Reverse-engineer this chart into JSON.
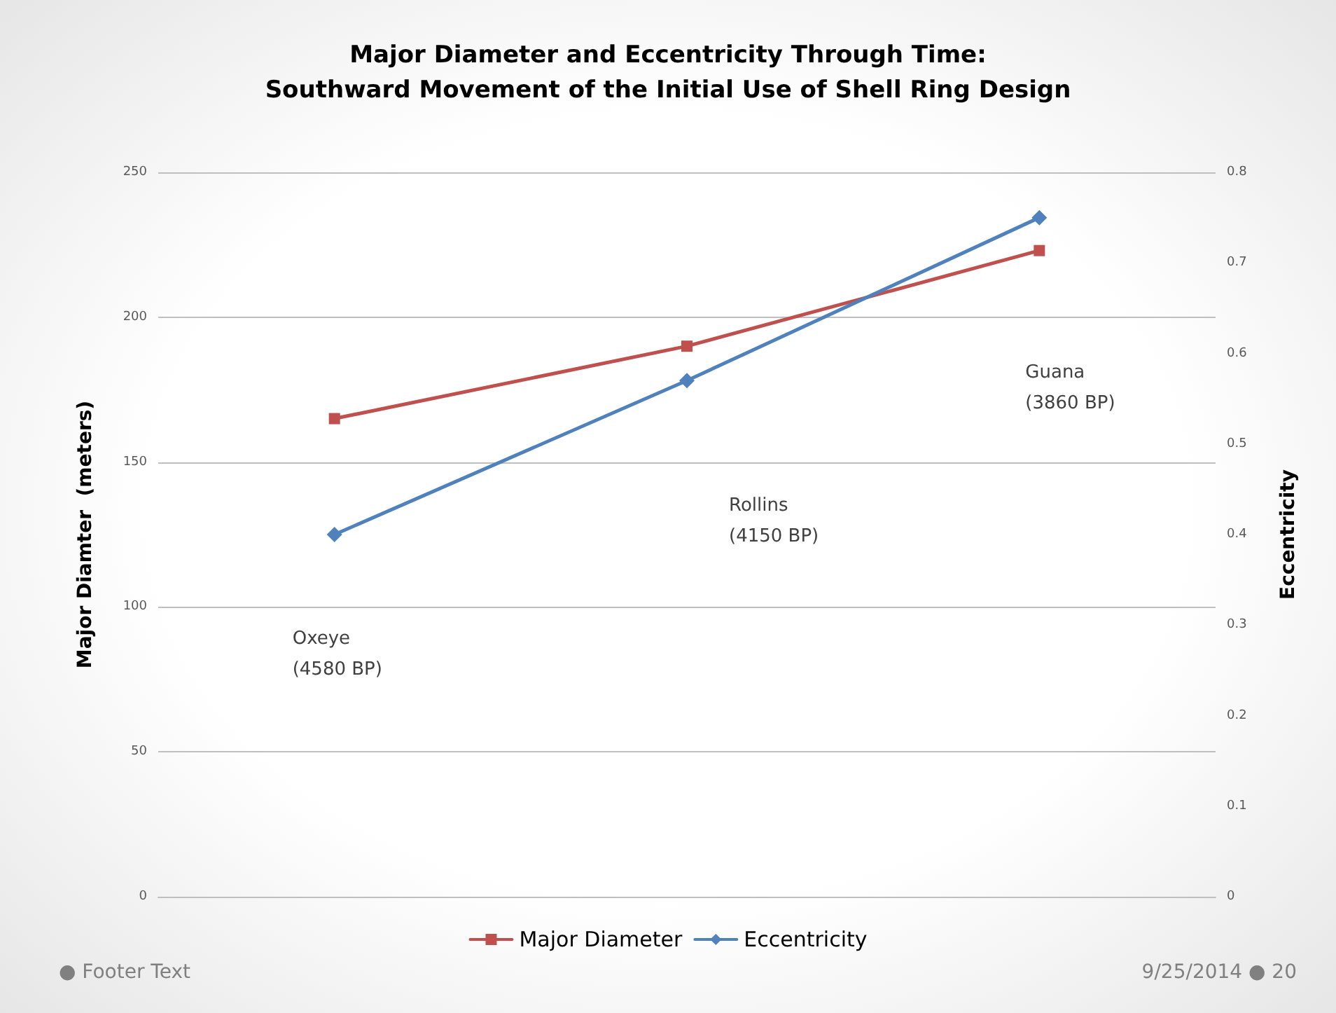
{
  "chart_data": {
    "type": "line",
    "title": "Major Diameter and Eccentricity Through Time:\nSouthward Movement of the Initial Use of Shell Ring Design",
    "ylabel": "Major Diamter  (meters)",
    "y2label": "Eccentricity",
    "categories": [
      null,
      null,
      null
    ],
    "series": [
      {
        "name": "Major Diameter",
        "color": "#c0504d",
        "marker": "square",
        "values": [
          165,
          190,
          223
        ]
      },
      {
        "name": "Eccentricity",
        "color": "#4f81bd",
        "marker": "diamond",
        "axis": "y2",
        "values": [
          0.4,
          0.57,
          0.75
        ]
      }
    ],
    "ylim": [
      0,
      250
    ],
    "yticks": [
      0,
      50,
      100,
      150,
      200,
      250
    ],
    "y2lim": [
      0,
      0.8
    ],
    "y2ticks": [
      0,
      0.1,
      0.2,
      0.3,
      0.4,
      0.5,
      0.6,
      0.7,
      0.8
    ],
    "grid": "y",
    "legend": "bottom",
    "line_style": "solid",
    "annotations": [
      "Oxeye\n(4580 BP)",
      "Rollins\n(4150 BP)",
      "Guana\n(3860 BP)",
      "● Footer Text",
      "9/25/2014 ● 20"
    ]
  }
}
